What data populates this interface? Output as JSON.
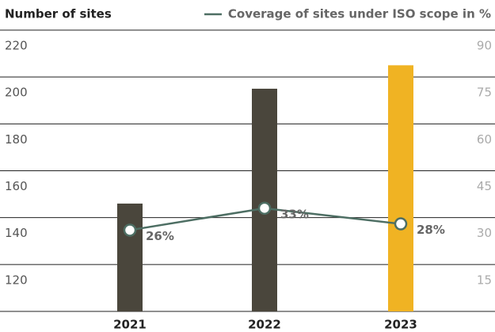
{
  "chart_data": {
    "type": "bar",
    "ylabel": "Number of sites",
    "categories": [
      "2021",
      "2022",
      "2023"
    ],
    "values": [
      146,
      195,
      205
    ],
    "colors": [
      "#4a463c",
      "#4a463c",
      "#f0b323"
    ],
    "ylim": [
      100,
      220
    ],
    "yticks": [
      120,
      140,
      160,
      180,
      200,
      220
    ],
    "y2lim": [
      0,
      90
    ],
    "y2ticks": [
      15,
      30,
      45,
      60,
      75,
      90
    ],
    "line": {
      "name": "Coverage of sites under ISO scope in %",
      "color": "#4d6e63",
      "axis": "y2",
      "values": [
        26,
        33,
        28
      ],
      "value_labels": [
        "26%",
        "33%",
        "28%"
      ]
    },
    "grid": true
  }
}
